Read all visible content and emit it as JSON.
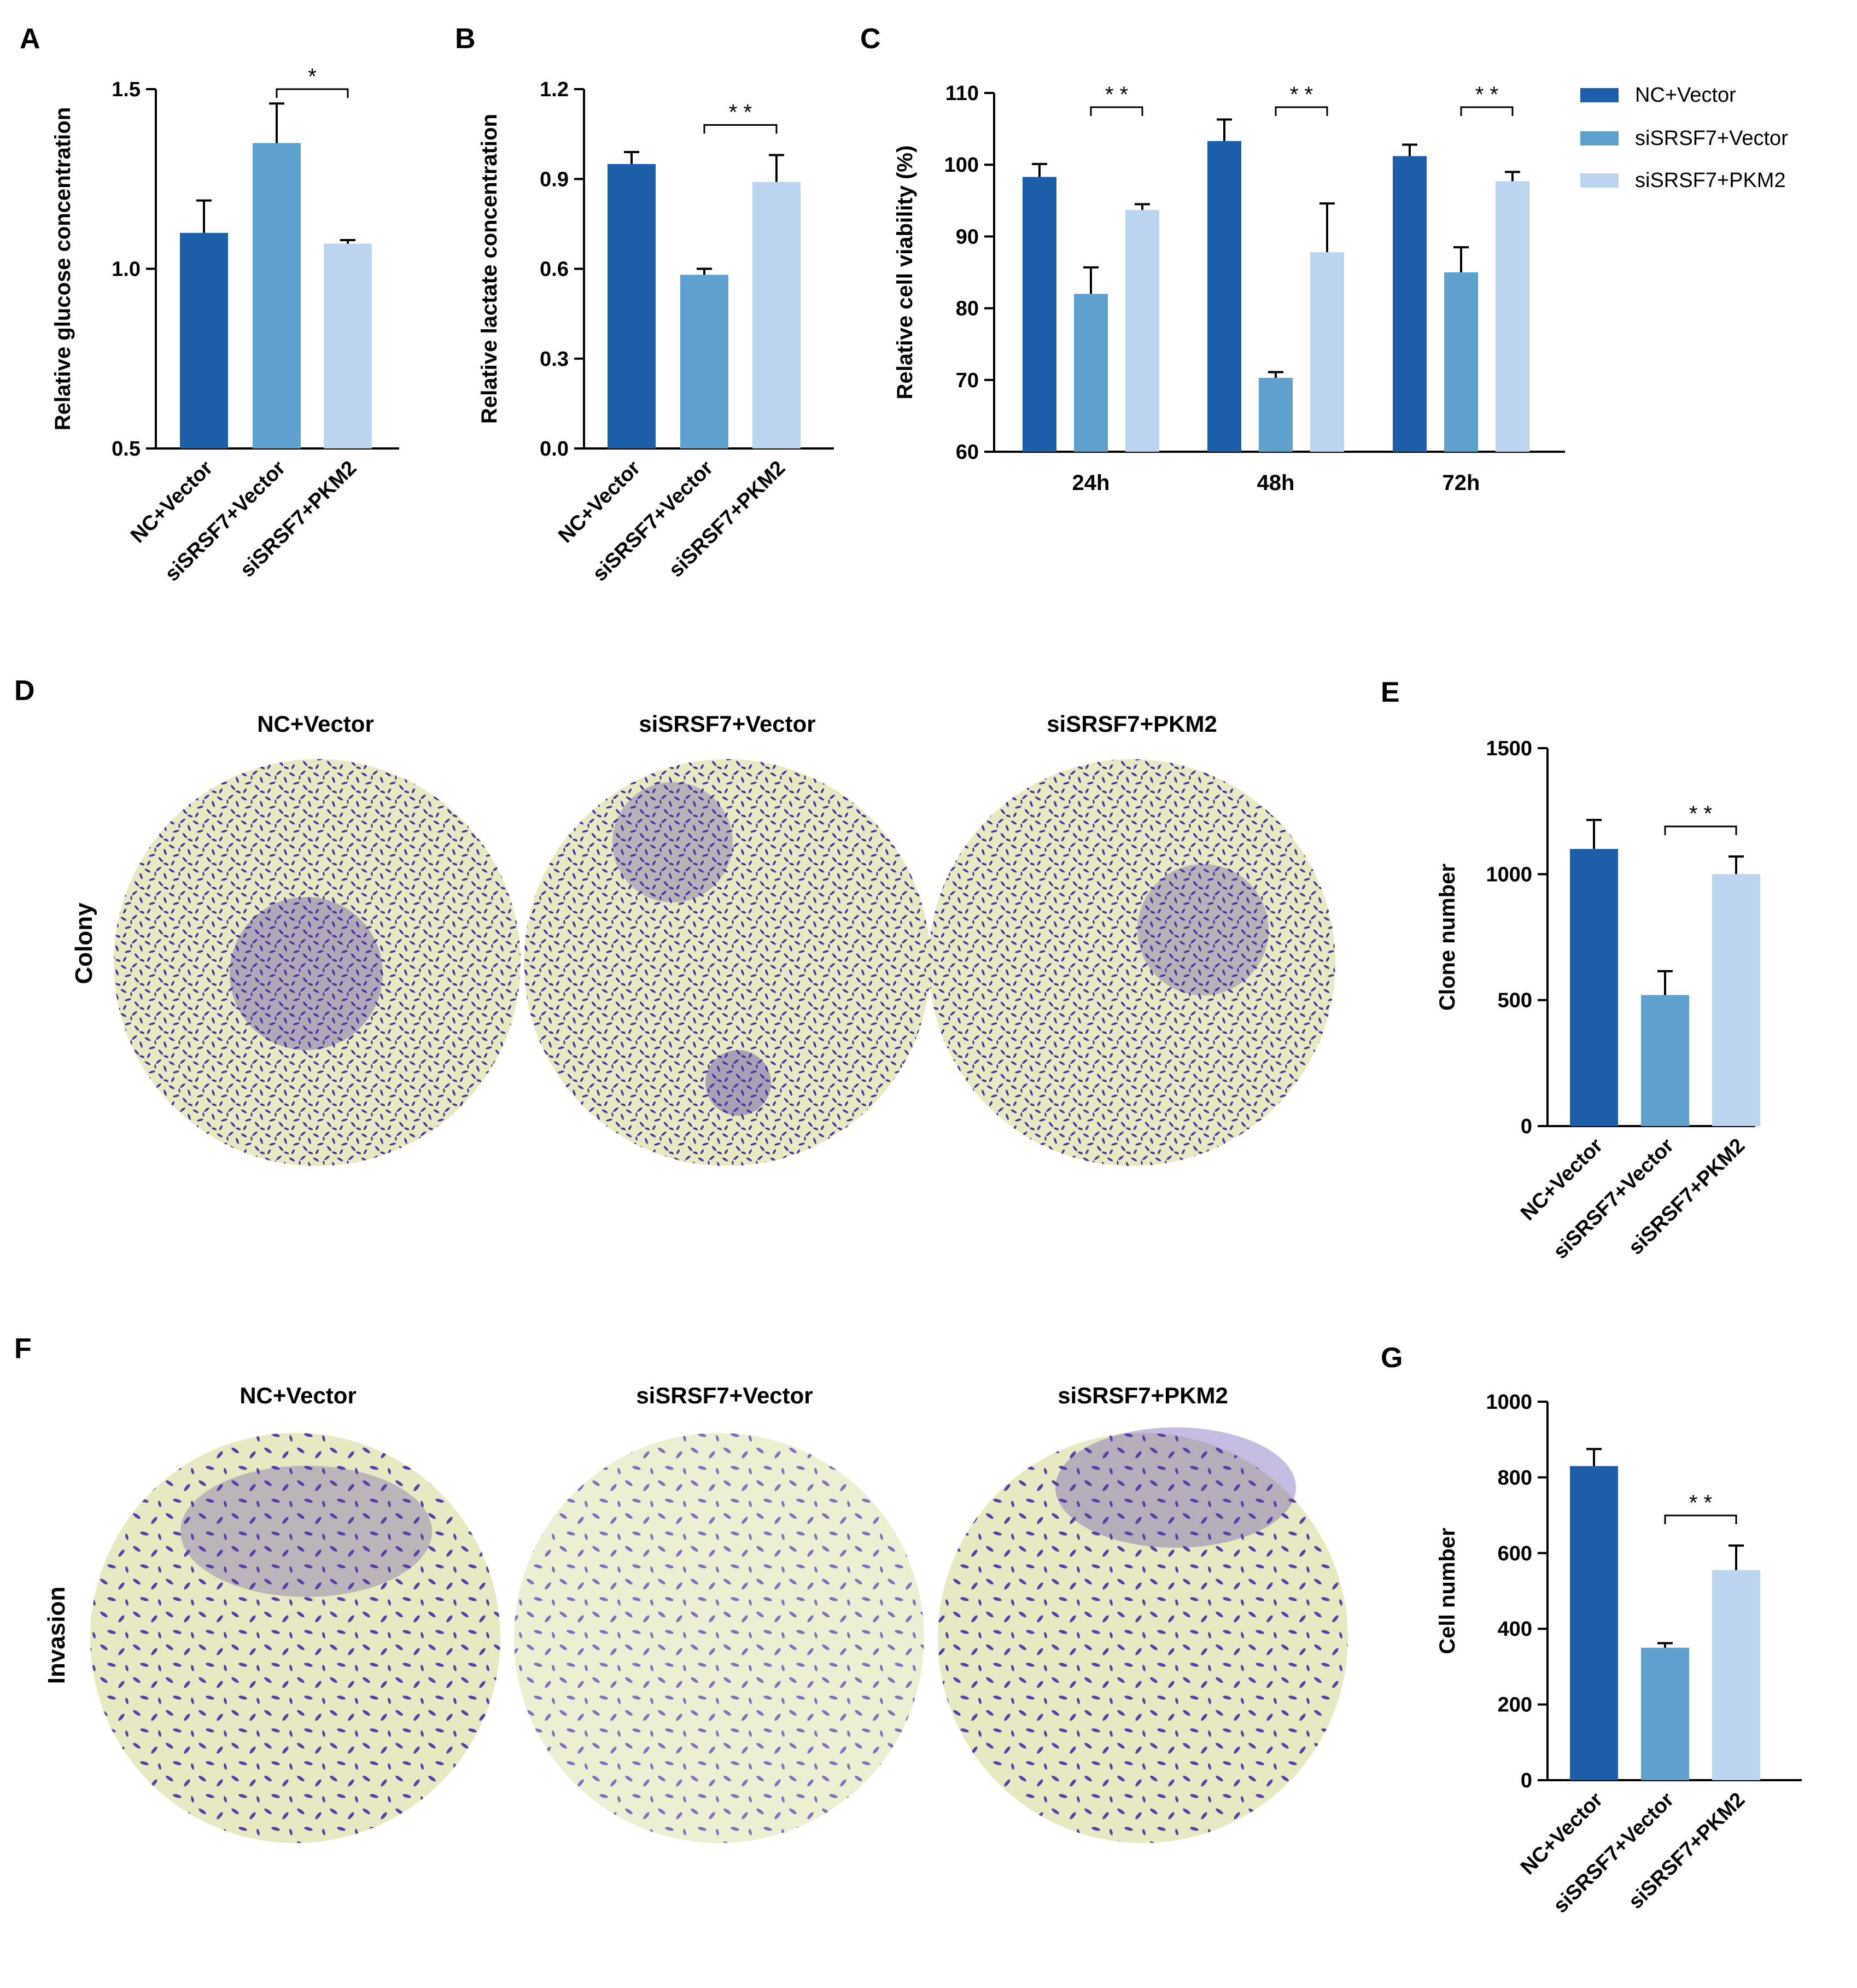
{
  "colors": {
    "nc": "#1c5ea8",
    "sivec": "#5ea0ce",
    "pkm2": "#bdd4ef",
    "dish_bg": "#e8ebc4",
    "stain": "#4a2fa0"
  },
  "groups": [
    "NC+Vector",
    "siSRSF7+Vector",
    "siSRSF7+PKM2"
  ],
  "panel_labels": {
    "a": "A",
    "b": "B",
    "c": "C",
    "d": "D",
    "e": "E",
    "f": "F",
    "g": "G"
  },
  "photos": {
    "colony_label": "Colony",
    "invasion_label": "Invasion"
  },
  "chart_data": [
    {
      "panel": "A",
      "type": "bar",
      "ylabel": "Relative glucose concentration",
      "ylim": [
        0.5,
        1.5
      ],
      "yticks": [
        "0.5",
        "1.0",
        "1.5"
      ],
      "categories": [
        "NC+Vector",
        "siSRSF7+Vector",
        "siSRSF7+PKM2"
      ],
      "values": [
        1.1,
        1.35,
        1.07
      ],
      "errors": [
        0.09,
        0.11,
        0.01
      ],
      "significance": [
        {
          "from": 1,
          "to": 2,
          "label": "*"
        }
      ]
    },
    {
      "panel": "B",
      "type": "bar",
      "ylabel": "Relative lactate concentration",
      "ylim": [
        0.0,
        1.2
      ],
      "yticks": [
        "0.0",
        "0.3",
        "0.6",
        "0.9",
        "1.2"
      ],
      "categories": [
        "NC+Vector",
        "siSRSF7+Vector",
        "siSRSF7+PKM2"
      ],
      "values": [
        0.95,
        0.58,
        0.89
      ],
      "errors": [
        0.04,
        0.02,
        0.09
      ],
      "significance": [
        {
          "from": 1,
          "to": 2,
          "label": "* *"
        }
      ]
    },
    {
      "panel": "C",
      "type": "bar",
      "ylabel": "Relative cell viability (%)",
      "ylim": [
        60,
        110
      ],
      "yticks": [
        "60",
        "70",
        "80",
        "90",
        "100",
        "110"
      ],
      "categories": [
        "24h",
        "48h",
        "72h"
      ],
      "series": [
        {
          "name": "NC+Vector",
          "values": [
            98.3,
            103.3,
            101.2
          ],
          "errors": [
            1.8,
            3.0,
            1.6
          ]
        },
        {
          "name": "siSRSF7+Vector",
          "values": [
            82.0,
            70.3,
            85.0
          ],
          "errors": [
            3.7,
            0.8,
            3.5
          ]
        },
        {
          "name": "siSRSF7+PKM2",
          "values": [
            93.7,
            87.8,
            97.7
          ],
          "errors": [
            0.8,
            6.8,
            1.3
          ]
        }
      ],
      "significance": [
        {
          "category": 0,
          "label": "* *"
        },
        {
          "category": 1,
          "label": "* *"
        },
        {
          "category": 2,
          "label": "* *"
        }
      ]
    },
    {
      "panel": "E",
      "type": "bar",
      "ylabel": "Clone number",
      "ylim": [
        0,
        1500
      ],
      "yticks": [
        "0",
        "500",
        "1000",
        "1500"
      ],
      "categories": [
        "NC+Vector",
        "siSRSF7+Vector",
        "siSRSF7+PKM2"
      ],
      "values": [
        1100,
        520,
        1000
      ],
      "errors": [
        115,
        95,
        70
      ],
      "significance": [
        {
          "from": 1,
          "to": 2,
          "label": "* *"
        }
      ]
    },
    {
      "panel": "G",
      "type": "bar",
      "ylabel": "Cell number",
      "ylim": [
        0,
        1000
      ],
      "yticks": [
        "0",
        "200",
        "400",
        "600",
        "800",
        "1000"
      ],
      "categories": [
        "NC+Vector",
        "siSRSF7+Vector",
        "siSRSF7+PKM2"
      ],
      "values": [
        830,
        350,
        555
      ],
      "errors": [
        45,
        12,
        65
      ],
      "significance": [
        {
          "from": 1,
          "to": 2,
          "label": "* *"
        }
      ]
    }
  ]
}
